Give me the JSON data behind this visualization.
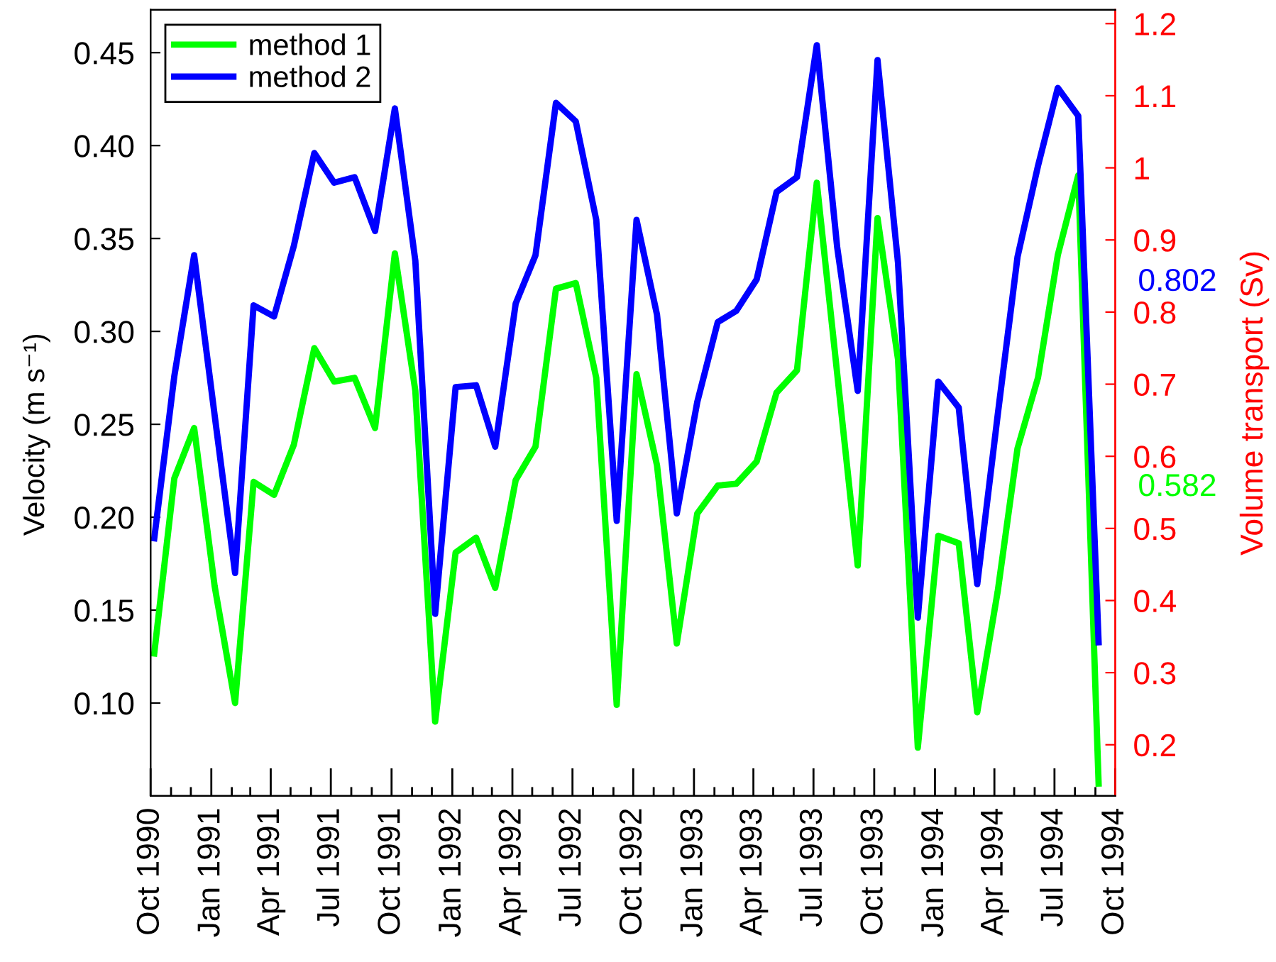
{
  "chart_data": {
    "type": "line",
    "ylabel": "Velocity (m s⁻¹)",
    "y2label": "Volume transport (Sv)",
    "x": [
      "1990-10-06",
      "1990-11-06",
      "1990-12-06",
      "1991-01-06",
      "1991-02-06",
      "1991-03-06",
      "1991-04-06",
      "1991-05-06",
      "1991-06-06",
      "1991-07-06",
      "1991-08-06",
      "1991-09-06",
      "1991-10-06",
      "1991-11-06",
      "1991-12-06",
      "1992-01-06",
      "1992-02-06",
      "1992-03-06",
      "1992-04-06",
      "1992-05-06",
      "1992-06-06",
      "1992-07-06",
      "1992-08-06",
      "1992-09-06",
      "1992-10-06",
      "1992-11-06",
      "1992-12-06",
      "1993-01-06",
      "1993-02-06",
      "1993-03-06",
      "1993-04-06",
      "1993-05-06",
      "1993-06-06",
      "1993-07-06",
      "1993-08-06",
      "1993-09-06",
      "1993-10-06",
      "1993-11-06",
      "1993-12-06",
      "1994-01-06",
      "1994-02-06",
      "1994-03-06",
      "1994-04-06",
      "1994-05-06",
      "1994-06-06",
      "1994-07-06",
      "1994-08-06",
      "1994-09-06"
    ],
    "series": [
      {
        "name": "method 1",
        "color": "#00ff00",
        "values": [
          0.125,
          0.221,
          0.248,
          0.163,
          0.1,
          0.219,
          0.212,
          0.239,
          0.291,
          0.273,
          0.275,
          0.248,
          0.342,
          0.268,
          0.09,
          0.181,
          0.189,
          0.162,
          0.22,
          0.238,
          0.323,
          0.326,
          0.275,
          0.099,
          0.277,
          0.228,
          0.132,
          0.202,
          0.217,
          0.218,
          0.23,
          0.267,
          0.279,
          0.38,
          0.277,
          0.174,
          0.361,
          0.285,
          0.076,
          0.19,
          0.186,
          0.095,
          0.16,
          0.237,
          0.275,
          0.341,
          0.384,
          0.055
        ]
      },
      {
        "name": "method 2",
        "color": "#0000ff",
        "values": [
          0.187,
          0.276,
          0.341,
          0.255,
          0.17,
          0.314,
          0.308,
          0.346,
          0.396,
          0.38,
          0.383,
          0.354,
          0.42,
          0.338,
          0.148,
          0.27,
          0.271,
          0.238,
          0.315,
          0.341,
          0.423,
          0.413,
          0.36,
          0.198,
          0.36,
          0.309,
          0.202,
          0.262,
          0.305,
          0.311,
          0.328,
          0.375,
          0.383,
          0.454,
          0.345,
          0.268,
          0.446,
          0.337,
          0.146,
          0.273,
          0.259,
          0.164,
          0.255,
          0.34,
          0.389,
          0.431,
          0.416,
          0.131
        ]
      }
    ],
    "xlim": [
      "1990-10",
      "1994-10"
    ],
    "xticks": [
      {
        "value": "1990-10",
        "label": "Oct 1990"
      },
      {
        "value": "1990-11",
        "label": null
      },
      {
        "value": "1990-12",
        "label": null
      },
      {
        "value": "1991-01",
        "label": "Jan 1991"
      },
      {
        "value": "1991-02",
        "label": null
      },
      {
        "value": "1991-03",
        "label": null
      },
      {
        "value": "1991-04",
        "label": "Apr 1991"
      },
      {
        "value": "1991-05",
        "label": null
      },
      {
        "value": "1991-06",
        "label": null
      },
      {
        "value": "1991-07",
        "label": "Jul 1991"
      },
      {
        "value": "1991-08",
        "label": null
      },
      {
        "value": "1991-09",
        "label": null
      },
      {
        "value": "1991-10",
        "label": "Oct 1991"
      },
      {
        "value": "1991-11",
        "label": null
      },
      {
        "value": "1991-12",
        "label": null
      },
      {
        "value": "1992-01",
        "label": "Jan 1992"
      },
      {
        "value": "1992-02",
        "label": null
      },
      {
        "value": "1992-03",
        "label": null
      },
      {
        "value": "1992-04",
        "label": "Apr 1992"
      },
      {
        "value": "1992-05",
        "label": null
      },
      {
        "value": "1992-06",
        "label": null
      },
      {
        "value": "1992-07",
        "label": "Jul 1992"
      },
      {
        "value": "1992-08",
        "label": null
      },
      {
        "value": "1992-09",
        "label": null
      },
      {
        "value": "1992-10",
        "label": "Oct 1992"
      },
      {
        "value": "1992-11",
        "label": null
      },
      {
        "value": "1992-12",
        "label": null
      },
      {
        "value": "1993-01",
        "label": "Jan 1993"
      },
      {
        "value": "1993-02",
        "label": null
      },
      {
        "value": "1993-03",
        "label": null
      },
      {
        "value": "1993-04",
        "label": "Apr 1993"
      },
      {
        "value": "1993-05",
        "label": null
      },
      {
        "value": "1993-06",
        "label": null
      },
      {
        "value": "1993-07",
        "label": "Jul 1993"
      },
      {
        "value": "1993-08",
        "label": null
      },
      {
        "value": "1993-09",
        "label": null
      },
      {
        "value": "1993-10",
        "label": "Oct 1993"
      },
      {
        "value": "1993-11",
        "label": null
      },
      {
        "value": "1993-12",
        "label": null
      },
      {
        "value": "1994-01",
        "label": "Jan 1994"
      },
      {
        "value": "1994-02",
        "label": null
      },
      {
        "value": "1994-03",
        "label": null
      },
      {
        "value": "1994-04",
        "label": "Apr 1994"
      },
      {
        "value": "1994-05",
        "label": null
      },
      {
        "value": "1994-06",
        "label": null
      },
      {
        "value": "1994-07",
        "label": "Jul 1994"
      },
      {
        "value": "1994-08",
        "label": null
      },
      {
        "value": "1994-09",
        "label": null
      },
      {
        "value": "1994-10",
        "label": "Oct 1994"
      }
    ],
    "ylim": [
      0.05,
      0.473
    ],
    "yticks": [
      {
        "value": 0.1,
        "label": "0.10"
      },
      0.15,
      {
        "value": 0.2,
        "label": "0.20"
      },
      0.25,
      {
        "value": 0.3,
        "label": "0.30"
      },
      0.35,
      {
        "value": 0.4,
        "label": "0.40"
      },
      0.45
    ],
    "y2lim": [
      0.129,
      1.219
    ],
    "y2ticks": [
      0.2,
      0.3,
      0.4,
      0.5,
      0.6,
      0.7,
      0.8,
      0.9,
      1,
      1.1,
      1.2
    ],
    "annotations": [
      "0.802",
      "0.582"
    ],
    "legend": "top left"
  }
}
